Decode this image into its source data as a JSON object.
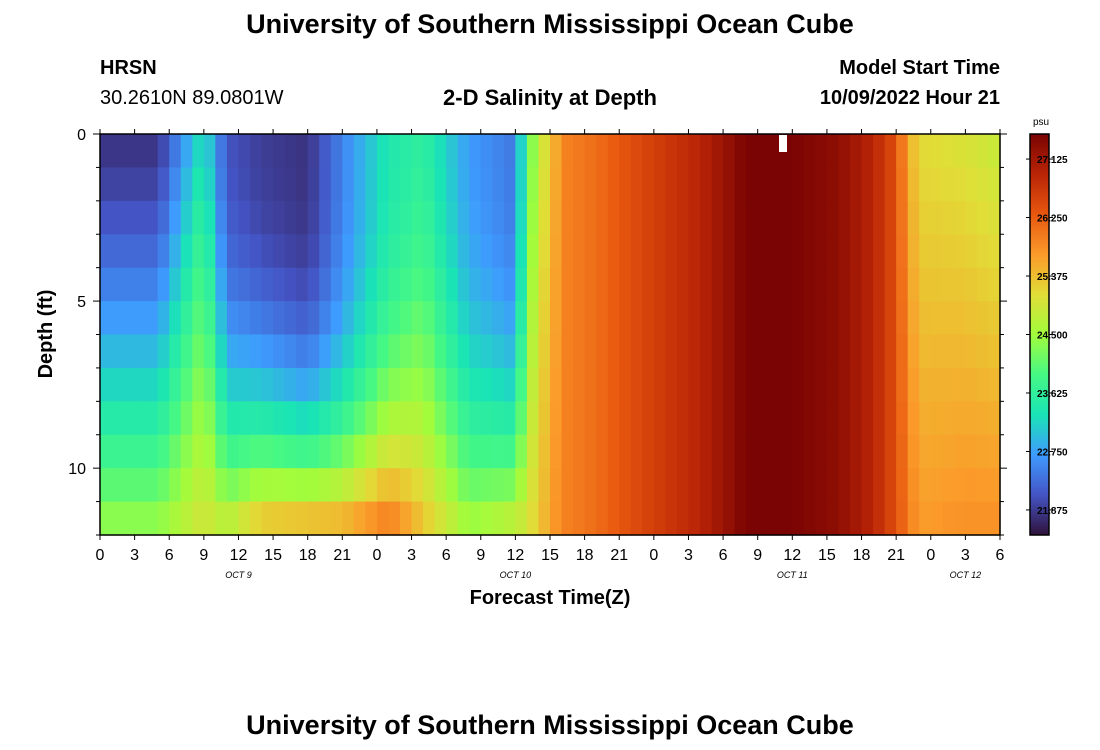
{
  "page": {
    "title_top": "University of Southern Mississippi Ocean Cube",
    "title_bottom": "University of Southern Mississippi Ocean Cube",
    "station_code": "HRSN",
    "station_coords": "30.2610N  89.0801W",
    "subtitle": "2-D Salinity at Depth",
    "model_start_label": "Model Start Time",
    "model_start_value": "10/09/2022 Hour 21"
  },
  "colors": {
    "colormap": [
      "#30123b",
      "#4454c4",
      "#3e9bfe",
      "#1ae4b6",
      "#46f884",
      "#a2fc3c",
      "#e1dd37",
      "#fb9a2a",
      "#e8570f",
      "#b92406",
      "#7a0403"
    ]
  },
  "chart_data": {
    "type": "heatmap",
    "title": "2-D Salinity at Depth",
    "xlabel": "Forecast Time(Z)",
    "ylabel": "Depth (ft)",
    "x_tick_labels": [
      "0",
      "3",
      "6",
      "9",
      "12",
      "15",
      "18",
      "21",
      "0",
      "3",
      "6",
      "9",
      "12",
      "15",
      "18",
      "21",
      "0",
      "3",
      "6",
      "9",
      "12",
      "15",
      "18",
      "21",
      "0",
      "3",
      "6"
    ],
    "date_labels": [
      {
        "label": "OCT 9",
        "hour_index": 12
      },
      {
        "label": "OCT 10",
        "hour_index": 36
      },
      {
        "label": "OCT 11",
        "hour_index": 60
      },
      {
        "label": "OCT 12",
        "hour_index": 75
      }
    ],
    "x_range_hours": [
      0,
      78
    ],
    "y_tick_labels": [
      "0",
      "5",
      "10"
    ],
    "y_tick_values": [
      0,
      5,
      10
    ],
    "ylim": [
      0,
      12
    ],
    "colorbar": {
      "unit": "psu",
      "tick_labels": [
        "27.125",
        "26.250",
        "25.375",
        "24.500",
        "23.625",
        "22.750",
        "21.875"
      ],
      "tick_values": [
        27.125,
        26.25,
        25.375,
        24.5,
        23.625,
        22.75,
        21.875
      ],
      "range": [
        21.5,
        27.5
      ]
    },
    "profile_hours": [
      0,
      5,
      9,
      11,
      14,
      18,
      21,
      25,
      28,
      32,
      36,
      37,
      38,
      39,
      40,
      43,
      47,
      52,
      56,
      60,
      64,
      67,
      69,
      70,
      71,
      75,
      78
    ],
    "profile_surface": [
      21.8,
      21.8,
      23.3,
      22.1,
      21.9,
      21.8,
      22.5,
      23.4,
      23.6,
      22.7,
      22.4,
      23.9,
      24.8,
      25.2,
      25.9,
      26.1,
      26.5,
      26.9,
      27.5,
      27.5,
      27.3,
      26.9,
      26.4,
      25.6,
      25.1,
      25.0,
      24.8
    ],
    "profile_bottom": [
      24.5,
      24.5,
      25.0,
      24.9,
      25.6,
      25.8,
      25.8,
      26.2,
      25.4,
      24.6,
      25.0,
      25.0,
      25.3,
      25.6,
      25.9,
      26.1,
      26.5,
      26.9,
      27.5,
      27.5,
      27.3,
      26.9,
      26.4,
      26.0,
      25.7,
      25.8,
      25.8
    ],
    "depth_exponents": [
      1.4,
      1.4,
      0.9,
      2.2,
      2.5,
      3.0,
      3.0,
      2.5,
      1.6,
      2.2,
      2.6,
      1.5,
      1.0,
      1.0,
      1.0,
      1.0,
      1.0,
      1.0,
      1.0,
      1.0,
      1.0,
      1.0,
      1.0,
      1.0,
      1.0,
      1.0,
      1.0
    ]
  }
}
